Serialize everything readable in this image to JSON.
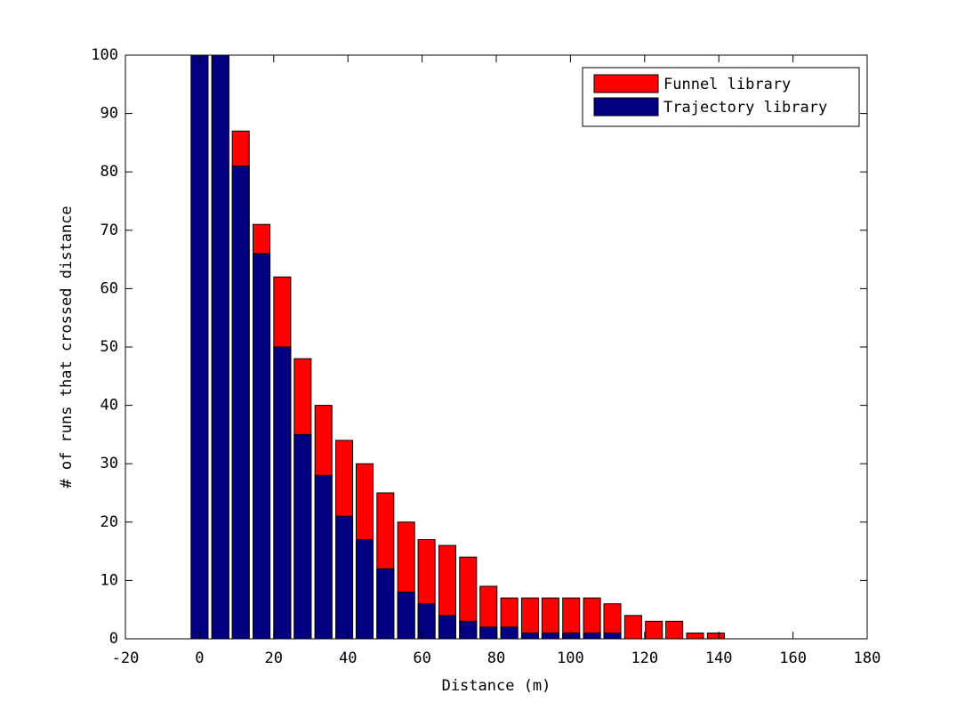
{
  "chart_data": {
    "type": "bar",
    "x_label": "Distance (m)",
    "y_label": "# of runs that crossed distance",
    "x": [
      0,
      5.6,
      11.1,
      16.7,
      22.3,
      27.8,
      33.4,
      39,
      44.5,
      50.1,
      55.7,
      61.2,
      66.8,
      72.4,
      77.9,
      83.5,
      89.1,
      94.6,
      100.2,
      105.8,
      111.3,
      116.9,
      122.5,
      128,
      133.6,
      139.2
    ],
    "series": [
      {
        "name": "Funnel library",
        "color": "#ff0000",
        "values": [
          100,
          100,
          87,
          71,
          62,
          48,
          40,
          34,
          30,
          25,
          20,
          17,
          16,
          14,
          9,
          7,
          7,
          7,
          7,
          7,
          6,
          4,
          3,
          3,
          1,
          1
        ]
      },
      {
        "name": "Trajectory library",
        "color": "#000080",
        "values": [
          100,
          100,
          81,
          66,
          50,
          35,
          28,
          21,
          17,
          12,
          8,
          6,
          4,
          3,
          2,
          2,
          1,
          1,
          1,
          1,
          1,
          0,
          0,
          0,
          0,
          0
        ]
      }
    ],
    "xlim": [
      -20,
      180
    ],
    "xticks": [
      -20,
      0,
      20,
      40,
      60,
      80,
      100,
      120,
      140,
      160,
      180
    ],
    "ylim": [
      0,
      100
    ],
    "yticks": [
      0,
      10,
      20,
      30,
      40,
      50,
      60,
      70,
      80,
      90,
      100
    ],
    "legend": "top-right",
    "grid": false
  }
}
